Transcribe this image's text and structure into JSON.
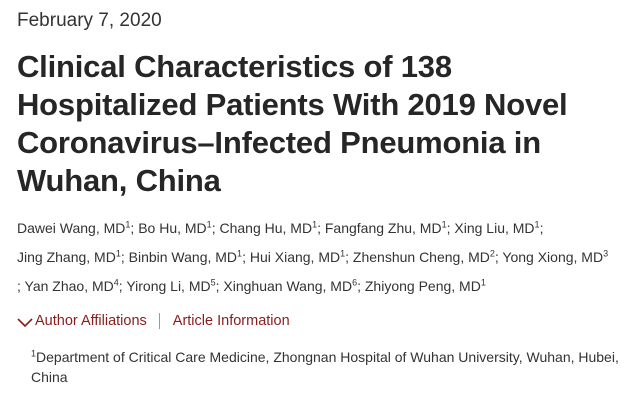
{
  "date": "February 7, 2020",
  "title": "Clinical Characteristics of 138 Hospitalized Patients With 2019 Novel Coronavirus–Infected Pneumonia in Wuhan, China",
  "authors": [
    {
      "name": "Dawei Wang, MD",
      "aff": "1"
    },
    {
      "name": "Bo Hu, MD",
      "aff": "1"
    },
    {
      "name": "Chang Hu, MD",
      "aff": "1"
    },
    {
      "name": "Fangfang Zhu, MD",
      "aff": "1"
    },
    {
      "name": "Xing Liu, MD",
      "aff": "1"
    },
    {
      "name": "Jing Zhang, MD",
      "aff": "1"
    },
    {
      "name": "Binbin Wang, MD",
      "aff": "1"
    },
    {
      "name": "Hui Xiang, MD",
      "aff": "1"
    },
    {
      "name": "Zhenshun Cheng, MD",
      "aff": "2"
    },
    {
      "name": "Yong Xiong, MD",
      "aff": "3"
    },
    {
      "name": "Yan Zhao, MD",
      "aff": "4"
    },
    {
      "name": "Yirong Li, MD",
      "aff": "5"
    },
    {
      "name": "Xinghuan Wang, MD",
      "aff": "6"
    },
    {
      "name": "Zhiyong Peng, MD",
      "aff": "1"
    }
  ],
  "links": {
    "author_affiliations": "Author Affiliations",
    "article_information": "Article Information"
  },
  "affiliation": {
    "number": "1",
    "text": "Department of Critical Care Medicine, Zhongnan Hospital of Wuhan University, Wuhan, Hubei, China"
  },
  "colors": {
    "link": "#8a1c1c",
    "title": "#262626"
  },
  "icons": {
    "affiliations_toggle": "chevron-down-icon"
  }
}
